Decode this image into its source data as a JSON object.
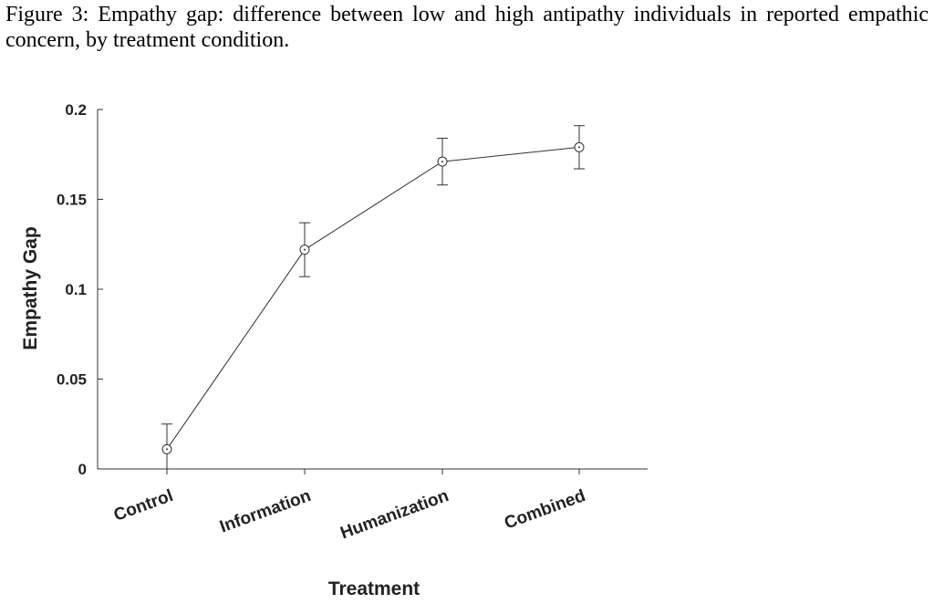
{
  "caption": "Figure 3: Empathy gap: difference between low and high antipathy individuals in reported empathic concern, by treatment condition.",
  "chart_data": {
    "type": "line",
    "title": "",
    "xlabel": "Treatment",
    "ylabel": "Empathy Gap",
    "categories": [
      "Control",
      "Information",
      "Humanization",
      "Combined"
    ],
    "values": [
      0.011,
      0.122,
      0.171,
      0.179
    ],
    "error_low": [
      -0.003,
      0.107,
      0.158,
      0.167
    ],
    "error_high": [
      0.025,
      0.137,
      0.184,
      0.191
    ],
    "ylim": [
      0,
      0.2
    ],
    "yticks": [
      0,
      0.05,
      0.1,
      0.15,
      0.2
    ],
    "ytick_labels": [
      "0",
      "0.05",
      "0.1",
      "0.15",
      "0.2"
    ],
    "grid": false,
    "marker": "circle-dot",
    "line_color": "#333333"
  }
}
